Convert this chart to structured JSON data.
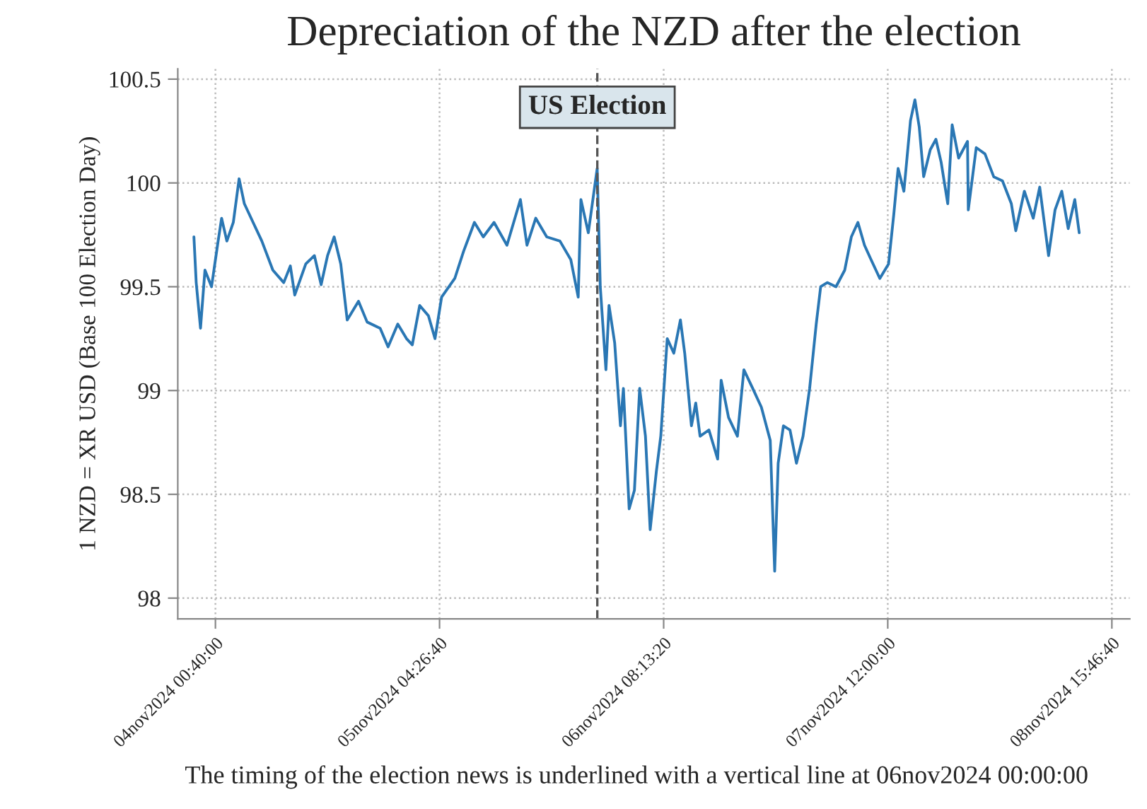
{
  "chart_data": {
    "type": "line",
    "title": "Depreciation of the NZD after the election",
    "ylabel": "1 NZD = XR USD (Base 100 Election Day)",
    "annotations": [
      "The timing of the election news is underlined with a vertical line at 06nov2024 00:00:00"
    ],
    "series": [
      {
        "color": "#2a77b4",
        "x": [
          "2024-11-03T22:00",
          "2024-11-03T22:17",
          "2024-11-03T22:49",
          "2024-11-03T23:22",
          "2024-11-04T00:11",
          "2024-11-04T01:00",
          "2024-11-04T01:26",
          "2024-11-04T02:05",
          "2024-11-04T02:53",
          "2024-11-04T03:36",
          "2024-11-04T04:15",
          "2024-11-04T05:20",
          "2024-11-04T06:25",
          "2024-11-04T07:47",
          "2024-11-04T09:08",
          "2024-11-04T09:57",
          "2024-11-04T10:30",
          "2024-11-04T11:52",
          "2024-11-04T12:56",
          "2024-11-04T13:46",
          "2024-11-04T14:34",
          "2024-11-04T15:23",
          "2024-11-04T16:12",
          "2024-11-04T17:00",
          "2024-11-04T18:24",
          "2024-11-04T19:28",
          "2024-11-04T21:05",
          "2024-11-04T22:04",
          "2024-11-04T23:16",
          "2024-11-05T00:21",
          "2024-11-05T01:04",
          "2024-11-05T01:59",
          "2024-11-05T03:04",
          "2024-11-05T03:53",
          "2024-11-05T04:42",
          "2024-11-05T06:20",
          "2024-11-05T07:25",
          "2024-11-05T08:46",
          "2024-11-05T09:52",
          "2024-11-05T11:12",
          "2024-11-05T12:48",
          "2024-11-05T14:28",
          "2024-11-05T15:17",
          "2024-11-05T16:22",
          "2024-11-05T17:44",
          "2024-11-05T19:22",
          "2024-11-05T20:43",
          "2024-11-05T21:38",
          "2024-11-05T21:58",
          "2024-11-05T22:53",
          "2024-11-05T23:59",
          "2024-11-06T00:22",
          "2024-11-06T01:04",
          "2024-11-06T01:27",
          "2024-11-06T02:09",
          "2024-11-06T02:52",
          "2024-11-06T03:14",
          "2024-11-06T03:57",
          "2024-11-06T04:36",
          "2024-11-06T05:15",
          "2024-11-06T05:58",
          "2024-11-06T06:33",
          "2024-11-06T07:19",
          "2024-11-06T07:52",
          "2024-11-06T08:40",
          "2024-11-06T09:29",
          "2024-11-06T10:18",
          "2024-11-06T10:50",
          "2024-11-06T11:40",
          "2024-11-06T12:12",
          "2024-11-06T12:44",
          "2024-11-06T13:50",
          "2024-11-06T14:55",
          "2024-11-06T15:21",
          "2024-11-06T16:16",
          "2024-11-06T17:22",
          "2024-11-06T18:10",
          "2024-11-06T19:16",
          "2024-11-06T20:20",
          "2024-11-06T21:26",
          "2024-11-06T21:59",
          "2024-11-06T22:25",
          "2024-11-06T23:04",
          "2024-11-06T23:53",
          "2024-11-07T00:41",
          "2024-11-07T01:30",
          "2024-11-07T02:19",
          "2024-11-07T03:08",
          "2024-11-07T03:41",
          "2024-11-07T04:30",
          "2024-11-07T05:35",
          "2024-11-07T06:40",
          "2024-11-07T07:29",
          "2024-11-07T08:18",
          "2024-11-07T09:07",
          "2024-11-07T09:56",
          "2024-11-07T11:01",
          "2024-11-07T12:06",
          "2024-11-07T12:45",
          "2024-11-07T13:17",
          "2024-11-07T14:00",
          "2024-11-07T14:49",
          "2024-11-07T15:22",
          "2024-11-07T15:54",
          "2024-11-07T16:27",
          "2024-11-07T17:16",
          "2024-11-07T17:58",
          "2024-11-07T18:37",
          "2024-11-07T19:26",
          "2024-11-07T19:59",
          "2024-11-07T20:47",
          "2024-11-07T21:53",
          "2024-11-07T21:59",
          "2024-11-07T22:58",
          "2024-11-08T00:03",
          "2024-11-08T01:08",
          "2024-11-08T02:13",
          "2024-11-08T03:19",
          "2024-11-08T03:52",
          "2024-11-08T04:56",
          "2024-11-08T06:02",
          "2024-11-08T06:50",
          "2024-11-08T07:56",
          "2024-11-08T08:44",
          "2024-11-08T09:34",
          "2024-11-08T10:22",
          "2024-11-08T11:11",
          "2024-11-08T11:44"
        ],
        "values": [
          99.74,
          99.52,
          99.3,
          99.58,
          99.5,
          99.72,
          99.83,
          99.72,
          99.81,
          100.02,
          99.9,
          99.81,
          99.72,
          99.58,
          99.52,
          99.6,
          99.46,
          99.61,
          99.65,
          99.51,
          99.65,
          99.74,
          99.61,
          99.34,
          99.43,
          99.33,
          99.3,
          99.21,
          99.32,
          99.25,
          99.22,
          99.41,
          99.36,
          99.25,
          99.45,
          99.54,
          99.67,
          99.81,
          99.74,
          99.81,
          99.7,
          99.92,
          99.7,
          99.83,
          99.74,
          99.72,
          99.63,
          99.45,
          99.92,
          99.76,
          100.07,
          99.5,
          99.1,
          99.41,
          99.23,
          98.83,
          99.01,
          98.43,
          98.52,
          99.01,
          98.78,
          98.33,
          98.61,
          98.78,
          99.25,
          99.18,
          99.34,
          99.18,
          98.83,
          98.94,
          98.78,
          98.81,
          98.67,
          99.05,
          98.87,
          98.78,
          99.1,
          99.01,
          98.92,
          98.76,
          98.13,
          98.65,
          98.83,
          98.81,
          98.65,
          98.78,
          99.01,
          99.32,
          99.5,
          99.52,
          99.5,
          99.58,
          99.74,
          99.81,
          99.7,
          99.63,
          99.54,
          99.61,
          99.85,
          100.07,
          99.96,
          100.3,
          100.4,
          100.27,
          100.03,
          100.16,
          100.21,
          100.1,
          99.9,
          100.28,
          100.12,
          100.2,
          99.87,
          100.17,
          100.14,
          100.03,
          100.01,
          99.9,
          99.77,
          99.96,
          99.83,
          99.98,
          99.65,
          99.87,
          99.96,
          99.78,
          99.92,
          99.76
        ]
      }
    ],
    "xlim": [
      "2024-11-03T20:00",
      "2024-11-08T18:00"
    ],
    "xticks": [
      {
        "value": "2024-11-04T00:40:00",
        "label": "04nov2024 00:40:00"
      },
      {
        "value": "2024-11-05T04:26:40",
        "label": "05nov2024 04:26:40"
      },
      {
        "value": "2024-11-06T08:13:20",
        "label": "06nov2024 08:13:20"
      },
      {
        "value": "2024-11-07T12:00:00",
        "label": "07nov2024 12:00:00"
      },
      {
        "value": "2024-11-08T15:46:40",
        "label": "08nov2024 15:46:40"
      }
    ],
    "ylim": [
      97.9,
      100.55
    ],
    "yticks": [
      98,
      98.5,
      99,
      99.5,
      100,
      100.5
    ],
    "ref_lines": [
      {
        "axis": "x",
        "value": "2024-11-06T00:00",
        "label": "US Election",
        "color": "#555555",
        "line_style": "dashed"
      }
    ],
    "grid": true,
    "legend": false,
    "marker": "none",
    "line_style": "solid"
  }
}
